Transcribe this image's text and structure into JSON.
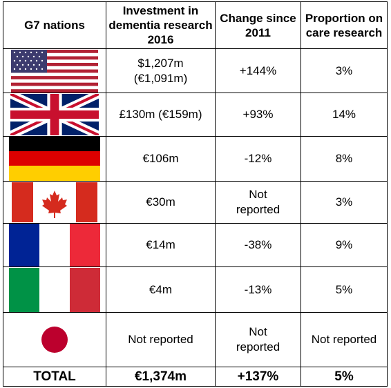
{
  "header": {
    "col1": "G7 nations",
    "col2": "Investment in dementia research 2016",
    "col3": "Change since 2011",
    "col4": "Proportion on care research"
  },
  "rows": [
    {
      "flag": "usa-flag-icon",
      "investment": "$1,207m\n(€1,091m)",
      "change": "+144%",
      "proportion": "3%"
    },
    {
      "flag": "uk-flag-icon",
      "investment": "£130m (€159m)",
      "change": "+93%",
      "proportion": "14%"
    },
    {
      "flag": "germany-flag-icon",
      "investment": "€106m",
      "change": "-12%",
      "proportion": "8%"
    },
    {
      "flag": "canada-flag-icon",
      "investment": "€30m",
      "change": "Not\nreported",
      "proportion": "3%"
    },
    {
      "flag": "france-flag-icon",
      "investment": "€14m",
      "change": "-38%",
      "proportion": "9%"
    },
    {
      "flag": "italy-flag-icon",
      "investment": "€4m",
      "change": "-13%",
      "proportion": "5%"
    },
    {
      "flag": "japan-flag-icon",
      "investment": "Not reported",
      "change": "Not\nreported",
      "proportion": "Not reported"
    }
  ],
  "total": {
    "label": "TOTAL",
    "investment": "€1,374m",
    "change": "+137%",
    "proportion": "5%"
  },
  "colors": {
    "usa_red": "#b22234",
    "usa_blue": "#3c3b6e",
    "uk_blue": "#012169",
    "uk_red": "#c8102e",
    "germany_gold": "#ffce00",
    "germany_red": "#dd0000",
    "canada_red": "#d52b1e",
    "france_blue": "#002395",
    "france_red": "#ed2939",
    "italy_green": "#009246",
    "italy_red": "#ce2b37",
    "japan_red": "#bc002d"
  }
}
